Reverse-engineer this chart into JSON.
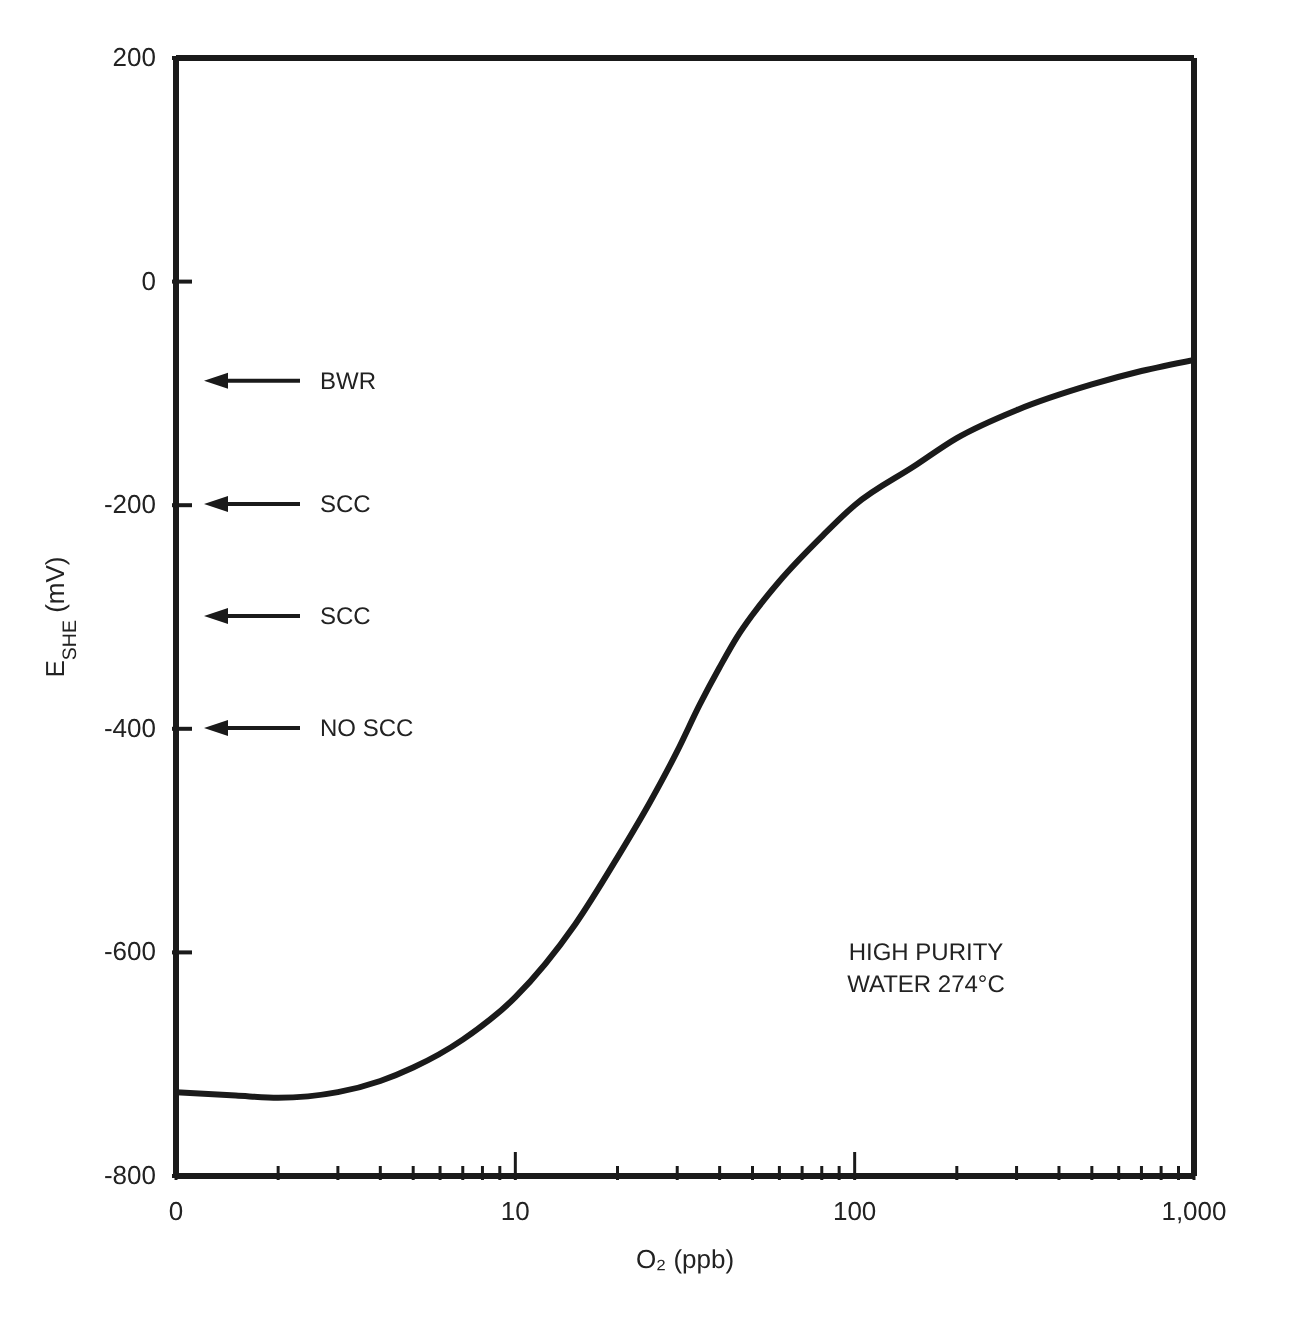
{
  "chart_data": {
    "type": "line",
    "xlabel": "O₂ (ppb)",
    "ylabel": "E$_{SHE}$ (mV)",
    "x": [
      1,
      1.5,
      2,
      3,
      4,
      5,
      7,
      10,
      15,
      20,
      25,
      30,
      35,
      40,
      45,
      50,
      60,
      80,
      100,
      150,
      200,
      300,
      500,
      700,
      1000
    ],
    "series": [
      {
        "color": "#1a1a1a",
        "values": [
          -725,
          -728,
          -730,
          -725,
          -715,
          -703,
          -678,
          -640,
          -575,
          -515,
          -465,
          -420,
          -378,
          -345,
          -318,
          -298,
          -268,
          -228,
          -200,
          -165,
          -140,
          -115,
          -92,
          -80,
          -70
        ]
      }
    ],
    "log": "x",
    "xlim": [
      0,
      1000
    ],
    "xticks": [
      0,
      {
        "value": 2,
        "label": null
      },
      {
        "value": 3,
        "label": null
      },
      {
        "value": 4,
        "label": null
      },
      {
        "value": 5,
        "label": null
      },
      {
        "value": 6,
        "label": null
      },
      {
        "value": 7,
        "label": null
      },
      {
        "value": 8,
        "label": null
      },
      {
        "value": 9,
        "label": null
      },
      10,
      {
        "value": 20,
        "label": null
      },
      {
        "value": 30,
        "label": null
      },
      {
        "value": 40,
        "label": null
      },
      {
        "value": 50,
        "label": null
      },
      {
        "value": 60,
        "label": null
      },
      {
        "value": 70,
        "label": null
      },
      {
        "value": 80,
        "label": null
      },
      {
        "value": 90,
        "label": null
      },
      100,
      {
        "value": 200,
        "label": null
      },
      {
        "value": 300,
        "label": null
      },
      {
        "value": 400,
        "label": null
      },
      {
        "value": 500,
        "label": null
      },
      {
        "value": 600,
        "label": null
      },
      {
        "value": 700,
        "label": null
      },
      {
        "value": 800,
        "label": null
      },
      {
        "value": 900,
        "label": null
      },
      {
        "value": 1000,
        "label": "1,000"
      }
    ],
    "ylim": [
      -800,
      200
    ],
    "yticks": [
      -800,
      -600,
      -400,
      -200,
      0,
      200
    ],
    "grid": false,
    "legend": false,
    "marker": "none",
    "line_style": "solid",
    "annotations": [
      "BWR",
      "SCC",
      "SCC",
      "NO SCC",
      "HIGH PURITY WATER 274°C"
    ]
  }
}
